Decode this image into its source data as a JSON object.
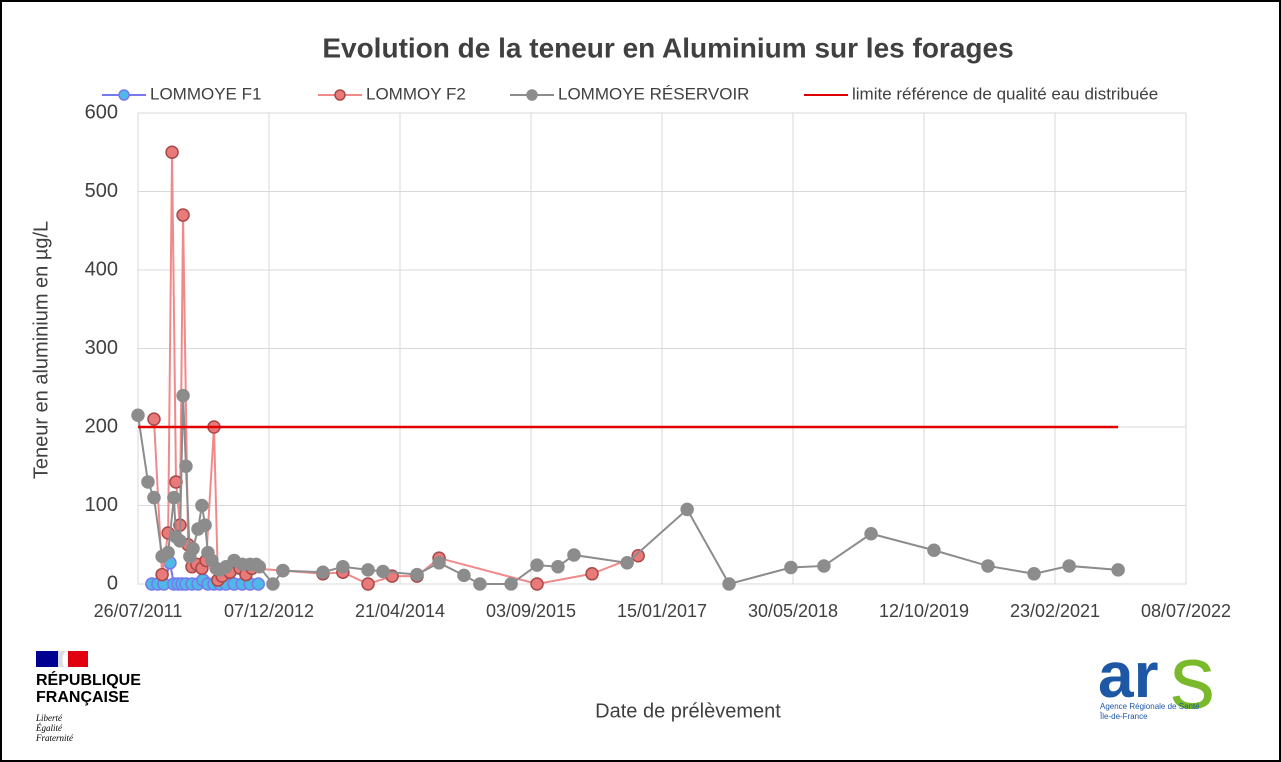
{
  "chart_data": {
    "type": "line",
    "title": "Evolution de la teneur en Aluminium sur les forages",
    "x_label": "Date de prélèvement",
    "y_label": "Teneur en aluminium en µg/L",
    "xlim": [
      "2011-07-26",
      "2022-07-08"
    ],
    "xticks": [
      {
        "value": "2011-07-26",
        "label": "26/07/2011"
      },
      {
        "value": "2012-12-07",
        "label": "07/12/2012"
      },
      {
        "value": "2014-04-21",
        "label": "21/04/2014"
      },
      {
        "value": "2015-09-03",
        "label": "03/09/2015"
      },
      {
        "value": "2017-01-15",
        "label": "15/01/2017"
      },
      {
        "value": "2018-05-30",
        "label": "30/05/2018"
      },
      {
        "value": "2019-10-12",
        "label": "12/10/2019"
      },
      {
        "value": "2021-02-23",
        "label": "23/02/2021"
      },
      {
        "value": "2022-07-08",
        "label": "08/07/2022"
      }
    ],
    "ylim": [
      0,
      600
    ],
    "yticks": [
      0,
      100,
      200,
      300,
      400,
      500,
      600
    ],
    "grid": true,
    "legend": "top",
    "series": [
      {
        "name": "LOMMOYE F1",
        "color": "#7878ee",
        "marker_color": "#4fb8e6",
        "marker": true,
        "x": [
          "2011-09-17",
          "2011-10-10",
          "2011-11-02",
          "2011-11-25",
          "2011-12-10",
          "2011-12-26",
          "2012-01-10",
          "2012-01-25",
          "2012-02-17",
          "2012-03-11",
          "2012-03-30",
          "2012-04-18",
          "2012-05-11",
          "2012-06-03",
          "2012-06-26",
          "2012-07-27",
          "2012-08-27",
          "2012-09-26",
          "2012-10-27"
        ],
        "values": [
          0,
          0,
          0,
          27,
          0,
          0,
          0,
          0,
          0,
          0,
          5,
          0,
          0,
          0,
          0,
          0,
          0,
          0,
          0
        ]
      },
      {
        "name": "LOMMOY F2",
        "color": "#f08a8a",
        "marker_color": "#e87a7a",
        "marker_stroke": "#a84848",
        "marker": true,
        "x": [
          "2011-09-25",
          "2011-10-26",
          "2011-11-18",
          "2011-12-03",
          "2011-12-18",
          "2012-01-02",
          "2012-01-14",
          "2012-02-02",
          "2012-02-17",
          "2012-03-07",
          "2012-03-26",
          "2012-04-11",
          "2012-05-11",
          "2012-05-26",
          "2012-06-11",
          "2012-07-11",
          "2012-08-19",
          "2012-09-10",
          "2012-10-03",
          "2013-01-29",
          "2013-07-01",
          "2013-09-15",
          "2013-12-20",
          "2014-03-22",
          "2014-06-25",
          "2014-09-17",
          "2015-09-26",
          "2016-04-23",
          "2016-10-16"
        ],
        "values": [
          210,
          12,
          65,
          550,
          130,
          75,
          470,
          50,
          22,
          25,
          20,
          30,
          200,
          5,
          10,
          15,
          20,
          12,
          20,
          17,
          13,
          15,
          0,
          10,
          10,
          33,
          0,
          13,
          36
        ]
      },
      {
        "name": "LOMMOYE RÉSERVOIR",
        "color": "#8c8c8c",
        "marker_color": "#8c8c8c",
        "marker": true,
        "x": [
          "2011-07-26",
          "2011-09-02",
          "2011-09-25",
          "2011-10-26",
          "2011-11-18",
          "2011-12-10",
          "2011-12-18",
          "2012-01-02",
          "2012-01-14",
          "2012-01-25",
          "2012-02-09",
          "2012-02-21",
          "2012-03-11",
          "2012-03-26",
          "2012-04-07",
          "2012-04-18",
          "2012-05-03",
          "2012-05-19",
          "2012-06-03",
          "2012-06-26",
          "2012-07-27",
          "2012-08-27",
          "2012-09-26",
          "2012-10-19",
          "2012-10-31",
          "2012-12-22",
          "2013-01-29",
          "2013-07-01",
          "2013-09-15",
          "2013-12-20",
          "2014-02-15",
          "2014-06-25",
          "2014-09-17",
          "2014-12-21",
          "2015-02-20",
          "2015-06-19",
          "2015-09-26",
          "2015-12-15",
          "2016-02-14",
          "2016-09-04",
          "2017-04-21",
          "2017-09-28",
          "2018-05-22",
          "2018-09-25",
          "2019-03-24",
          "2019-11-19",
          "2020-06-12",
          "2020-12-05",
          "2021-04-18",
          "2021-10-22"
        ],
        "values": [
          215,
          130,
          110,
          35,
          40,
          110,
          60,
          55,
          240,
          150,
          35,
          45,
          70,
          100,
          75,
          40,
          30,
          20,
          18,
          22,
          30,
          25,
          25,
          25,
          22,
          0,
          17,
          15,
          22,
          18,
          16,
          12,
          27,
          11,
          0,
          0,
          24,
          22,
          37,
          27,
          95,
          0,
          21,
          23,
          64,
          43,
          23,
          13,
          23,
          18
        ]
      },
      {
        "name": "limite référence de qualité eau distribuée",
        "color": "#e00000",
        "marker": false,
        "x": [
          "2011-07-26",
          "2021-10-22"
        ],
        "values": [
          200,
          200
        ]
      }
    ]
  },
  "logos": {
    "republique": [
      "RÉPUBLIQUE",
      "FRANÇAISE"
    ],
    "devise": [
      "Liberté",
      "Égalité",
      "Fraternité"
    ],
    "ars_letters": [
      "ar",
      "s"
    ],
    "ars_name": "Agence Régionale de Santé",
    "ars_region": "Île-de-France"
  }
}
